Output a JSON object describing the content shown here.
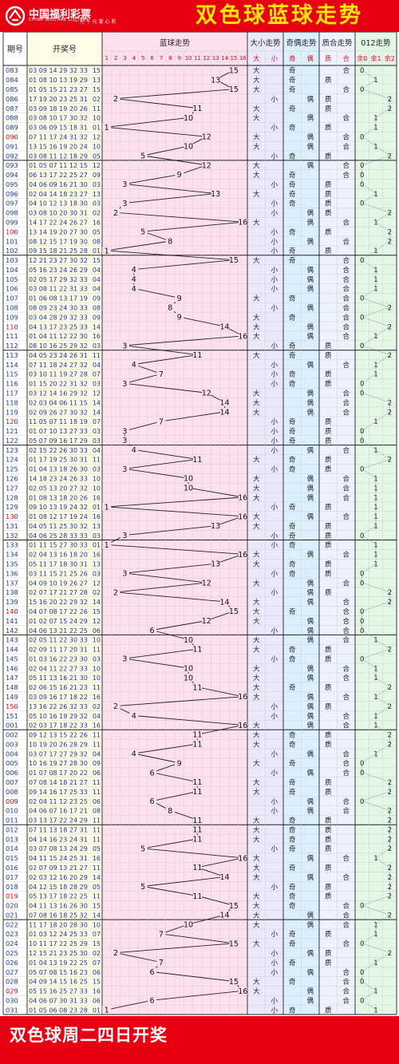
{
  "header": {
    "logo_cn": "中国福利彩票",
    "logo_en": "CHINA WELFARE LOTTERY",
    "logo_sub": "一 元 千 元 爱 心 彩",
    "title": "双色球蓝球走势"
  },
  "footer": {
    "text": "双色球周二四日开奖"
  },
  "colors": {
    "brand_red": "#e60012",
    "title_yellow": "#ffe600",
    "issue_red": "#e60012",
    "issue_blue": "#1a3a9e",
    "draw_text": "#1a3a9e",
    "blue_zone_bg": "#fde0ec",
    "size_zone_bg": "#ece8fb",
    "parity_zone_bg": "#dcefff",
    "prime_zone_bg": "#eef2ff",
    "mod3_zone_bg": "#e3f7e6",
    "draw_zone_bg": "#fffbe6",
    "grid_line": "#c9c9c9",
    "group_line": "#222222"
  },
  "chart_data": {
    "type": "table",
    "title": "双色球蓝球走势",
    "columns": {
      "issue": "期号",
      "draw": "开奖号",
      "blue": "蓝球走势",
      "size": "大小走势",
      "parity": "奇偶走势",
      "prime": "质合走势",
      "mod3": "012走势"
    },
    "blue_ticks": [
      "1",
      "2",
      "3",
      "4",
      "5",
      "6",
      "7",
      "8",
      "9",
      "10",
      "11",
      "12",
      "13",
      "14",
      "15",
      "16"
    ],
    "size_ticks": [
      "大",
      "小"
    ],
    "parity_ticks": [
      "奇",
      "偶"
    ],
    "prime_ticks": [
      "质",
      "合"
    ],
    "mod3_ticks": [
      "余0",
      "余1",
      "余2"
    ],
    "labels": {
      "big": "大",
      "small": "小",
      "odd": "奇",
      "even": "偶",
      "prime": "质",
      "composite": "合"
    },
    "rows": [
      [
        "083",
        "03 09 14 29 32 33",
        15
      ],
      [
        "084",
        "01 08 10 13 19 29",
        13
      ],
      [
        "085",
        "01 05 15 21 23 27",
        15
      ],
      [
        "086",
        "17 19 20 23 25 31",
        2
      ],
      [
        "087",
        "03 09 18 19 20 26",
        11
      ],
      [
        "088",
        "03 08 10 17 30 32",
        10
      ],
      [
        "089",
        "03 06 09 15 18 31",
        1
      ],
      [
        "090",
        "07 11 17 24 31 32",
        12
      ],
      [
        "091",
        "13 15 16 19 20 24",
        10
      ],
      [
        "092",
        "03 08 11 12 18 29",
        5
      ],
      [
        "093",
        "01 05 07 11 12 15",
        12
      ],
      [
        "094",
        "06 13 17 22 25 27",
        9
      ],
      [
        "095",
        "04 06 09 16 21 30",
        3
      ],
      [
        "096",
        "02 04 14 18 23 27",
        13
      ],
      [
        "097",
        "04 10 12 13 18 30",
        3
      ],
      [
        "098",
        "03 08 10 20 30 31",
        2
      ],
      [
        "099",
        "14 17 22 24 26 27",
        16
      ],
      [
        "100",
        "13 14 19 20 27 30",
        5
      ],
      [
        "101",
        "08 12 15 17 19 30",
        8
      ],
      [
        "102",
        "09 15 18 21 25 28",
        1
      ],
      [
        "103",
        "12 21 23 27 30 32",
        15
      ],
      [
        "104",
        "05 16 23 24 26 29",
        4
      ],
      [
        "105",
        "02 05 17 29 32 33",
        4
      ],
      [
        "106",
        "03 08 11 22 31 33",
        4
      ],
      [
        "107",
        "01 06 08 13 17 19",
        9
      ],
      [
        "108",
        "08 09 23 24 30 33",
        8
      ],
      [
        "109",
        "03 04 28 29 32 33",
        9
      ],
      [
        "110",
        "04 13 17 23 25 33",
        14
      ],
      [
        "111",
        "01 04 11 12 22 30",
        16
      ],
      [
        "112",
        "08 10 16 25 29 32",
        3
      ],
      [
        "113",
        "04 05 23 24 26 31",
        11
      ],
      [
        "114",
        "07 11 18 24 27 32",
        4
      ],
      [
        "115",
        "03 10 11 19 27 28",
        7
      ],
      [
        "116",
        "01 15 20 22 31 32",
        3
      ],
      [
        "117",
        "03 12 14 16 29 32",
        12
      ],
      [
        "118",
        "02 03 04 06 11 15",
        14
      ],
      [
        "119",
        "02 09 26 27 30 32",
        14
      ],
      [
        "120",
        "11 05 07 11 18 19",
        7
      ],
      [
        "121",
        "01 07 10 13 27 33",
        3
      ],
      [
        "122",
        "05 07 09 16 17 29",
        3
      ],
      [
        "123",
        "02 15 22 26 30 33",
        4
      ],
      [
        "124",
        "01 17 19 25 30 31",
        11
      ],
      [
        "125",
        "01 04 13 18 26 30",
        3
      ],
      [
        "126",
        "14 18 23 24 26 33",
        10
      ],
      [
        "127",
        "02 05 13 20 27 32",
        10
      ],
      [
        "128",
        "01 08 13 18 20 26",
        16
      ],
      [
        "129",
        "09 10 13 19 24 32",
        1
      ],
      [
        "130",
        "01 08 12 17 19 24",
        16
      ],
      [
        "131",
        "04 05 11 25 30 32",
        13
      ],
      [
        "132",
        "04 06 25 28 33 33",
        3
      ],
      [
        "133",
        "01 11 15 27 30 33",
        1
      ],
      [
        "134",
        "02 04 13 16 18 20",
        16
      ],
      [
        "135",
        "05 11 17 18 30 31",
        13
      ],
      [
        "136",
        "03 11 15 21 25 26",
        3
      ],
      [
        "137",
        "04 09 10 19 26 27",
        12
      ],
      [
        "138",
        "02 07 17 21 27 28",
        2
      ],
      [
        "139",
        "15 16 20 22 29 32",
        14
      ],
      [
        "140",
        "04 07 08 17 22 26",
        15
      ],
      [
        "141",
        "01 02 07 15 24 29",
        12
      ],
      [
        "142",
        "04 06 13 21 22 25",
        6
      ],
      [
        "143",
        "02 05 11 22 30 33",
        10
      ],
      [
        "144",
        "02 09 11 17 20 31",
        11
      ],
      [
        "145",
        "01 03 16 22 23 30",
        3
      ],
      [
        "146",
        "02 04 11 22 27 33",
        10
      ],
      [
        "147",
        "05 11 13 16 21 30",
        10
      ],
      [
        "148",
        "02 06 15 16 21 23",
        11
      ],
      [
        "149",
        "03 09 16 17 18 22",
        16
      ],
      [
        "150",
        "13 16 22 26 32 33",
        2
      ],
      [
        "151",
        "05 10 16 19 29 32",
        4
      ],
      [
        "001",
        "02 03 17 18 22 33",
        16
      ],
      [
        "002",
        "09 12 13 15 22 26",
        11
      ],
      [
        "003",
        "10 19 20 26 28 29",
        11
      ],
      [
        "004",
        "03 07 17 27 29 32",
        4
      ],
      [
        "005",
        "10 16 19 27 28 30",
        9
      ],
      [
        "006",
        "01 07 08 17 20 22",
        6
      ],
      [
        "007",
        "07 08 14 18 21 27",
        11
      ],
      [
        "008",
        "09 14 16 17 25 33",
        11
      ],
      [
        "009",
        "02 04 11 12 23 25",
        6
      ],
      [
        "010",
        "04 06 07 16 17 21",
        8
      ],
      [
        "011",
        "03 13 17 22 24 29",
        11
      ],
      [
        "012",
        "07 11 13 18 27 31",
        11
      ],
      [
        "013",
        "04 14 16 23 24 31",
        11
      ],
      [
        "014",
        "03 07 08 13 24 29",
        5
      ],
      [
        "015",
        "04 11 15 24 25 31",
        16
      ],
      [
        "016",
        "02 07 09 13 21 27",
        11
      ],
      [
        "017",
        "02 03 12 16 20 29",
        14
      ],
      [
        "018",
        "04 12 15 18 28 29",
        5
      ],
      [
        "019",
        "05 13 17 18 22 25",
        11
      ],
      [
        "020",
        "04 11 13 16 26 30",
        15
      ],
      [
        "021",
        "07 08 16 18 25 32",
        14
      ],
      [
        "022",
        "11 17 18 20 28 30",
        10
      ],
      [
        "023",
        "01 03 12 24 25 33",
        7
      ],
      [
        "024",
        "10 11 17 22 25 29",
        15
      ],
      [
        "025",
        "12 15 21 23 25 30",
        2
      ],
      [
        "026",
        "01 04 13 19 22 25",
        7
      ],
      [
        "027",
        "05 07 08 15 16 23",
        6
      ],
      [
        "028",
        "04 09 14 15 16 25",
        15
      ],
      [
        "029",
        "05 15 16 25 27 33",
        16
      ],
      [
        "030",
        "04 06 07 30 31 33",
        6
      ],
      [
        "031",
        "01 05 06 08 23 28",
        1
      ]
    ]
  }
}
